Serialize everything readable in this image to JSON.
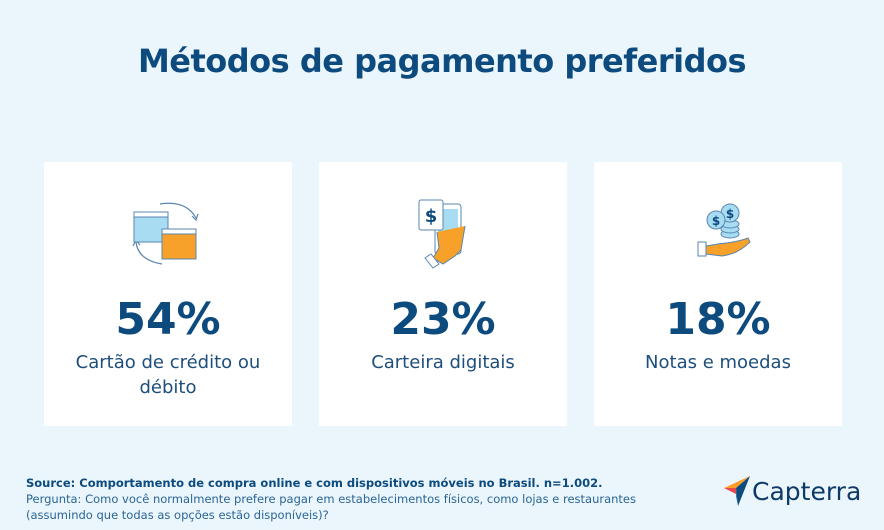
{
  "title": "Métodos de pagamento preferidos",
  "cards": [
    {
      "value": "54%",
      "label": "Cartão de crédito ou débito",
      "icon": "browser-windows-sync-icon"
    },
    {
      "value": "23%",
      "label": "Carteira digitais",
      "icon": "hand-holding-phone-dollar-icon"
    },
    {
      "value": "18%",
      "label": "Notas e moedas",
      "icon": "hand-coins-icon"
    }
  ],
  "footer": {
    "source": "Source: Comportamento de compra online e com dispositivos móveis no Brasil. n=1.002.",
    "question": "Pergunta: Como você normalmente prefere pagar em estabelecimentos físicos, como lojas e restaurantes (assumindo que todas as opções estão disponíveis)?"
  },
  "logo": {
    "text": "Capterra"
  },
  "colors": {
    "background": "#eaf6fc",
    "title": "#0d4a7e",
    "accent_orange": "#f7a12a",
    "accent_light_blue": "#a8dcf3"
  }
}
